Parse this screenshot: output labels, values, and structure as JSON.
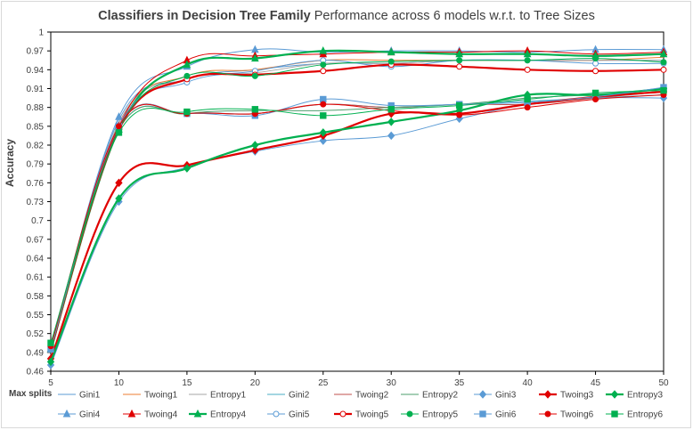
{
  "chart_data": {
    "type": "line",
    "title_bold": "Classifiers in Decision Tree Family",
    "title_rest": "Performance across 6 models w.r.t. to Tree Sizes",
    "ylabel": "Accuracy",
    "xlabel": "Max splits",
    "x": [
      5,
      10,
      15,
      20,
      25,
      30,
      35,
      40,
      45,
      50
    ],
    "ylim": [
      0.46,
      1.0
    ],
    "yticks": [
      "0.46",
      "0.49",
      "0.52",
      "0.55",
      "0.58",
      "0.61",
      "0.64",
      "0.67",
      "0.7",
      "0.73",
      "0.76",
      "0.79",
      "0.82",
      "0.85",
      "0.88",
      "0.91",
      "0.94",
      "0.97",
      "1"
    ],
    "series": [
      {
        "name": "Gini1",
        "color": "#5b9bd5",
        "marker": "none",
        "width": 1,
        "values": [
          0.495,
          0.86,
          0.925,
          0.94,
          0.95,
          0.95,
          0.955,
          0.955,
          0.955,
          0.955
        ]
      },
      {
        "name": "Twoing1",
        "color": "#ed7d31",
        "marker": "none",
        "width": 1,
        "values": [
          0.495,
          0.855,
          0.93,
          0.94,
          0.955,
          0.955,
          0.955,
          0.955,
          0.955,
          0.96
        ]
      },
      {
        "name": "Entropy1",
        "color": "#a5a5a5",
        "marker": "none",
        "width": 1,
        "values": [
          0.495,
          0.855,
          0.925,
          0.935,
          0.95,
          0.95,
          0.955,
          0.955,
          0.955,
          0.955
        ]
      },
      {
        "name": "Gini2",
        "color": "#4aacc6",
        "marker": "none",
        "width": 1,
        "values": [
          0.49,
          0.845,
          0.87,
          0.87,
          0.885,
          0.88,
          0.885,
          0.89,
          0.895,
          0.9
        ]
      },
      {
        "name": "Twoing2",
        "color": "#c0504d",
        "marker": "none",
        "width": 1,
        "values": [
          0.49,
          0.85,
          0.87,
          0.87,
          0.885,
          0.88,
          0.885,
          0.885,
          0.895,
          0.905
        ]
      },
      {
        "name": "Entropy2",
        "color": "#4e9f6e",
        "marker": "none",
        "width": 1,
        "values": [
          0.49,
          0.845,
          0.87,
          0.875,
          0.875,
          0.88,
          0.885,
          0.895,
          0.9,
          0.905
        ]
      },
      {
        "name": "Gini3",
        "color": "#5b9bd5",
        "marker": "diamond",
        "width": 1,
        "values": [
          0.47,
          0.73,
          0.785,
          0.81,
          0.827,
          0.835,
          0.862,
          0.885,
          0.895,
          0.895
        ]
      },
      {
        "name": "Twoing3",
        "color": "#e00000",
        "marker": "diamond",
        "width": 2.2,
        "values": [
          0.48,
          0.76,
          0.788,
          0.812,
          0.835,
          0.87,
          0.87,
          0.885,
          0.897,
          0.905
        ]
      },
      {
        "name": "Entropy3",
        "color": "#00b050",
        "marker": "diamond",
        "width": 2.2,
        "values": [
          0.475,
          0.735,
          0.783,
          0.82,
          0.84,
          0.857,
          0.875,
          0.9,
          0.9,
          0.91
        ]
      },
      {
        "name": "Gini4",
        "color": "#5b9bd5",
        "marker": "triangle",
        "width": 1,
        "values": [
          0.495,
          0.865,
          0.945,
          0.972,
          0.968,
          0.97,
          0.97,
          0.968,
          0.972,
          0.972
        ]
      },
      {
        "name": "Twoing4",
        "color": "#e00000",
        "marker": "triangle",
        "width": 1,
        "values": [
          0.495,
          0.85,
          0.955,
          0.962,
          0.965,
          0.968,
          0.968,
          0.97,
          0.965,
          0.968
        ]
      },
      {
        "name": "Entropy4",
        "color": "#00b050",
        "marker": "triangle",
        "width": 2.2,
        "values": [
          0.495,
          0.845,
          0.948,
          0.958,
          0.97,
          0.968,
          0.965,
          0.965,
          0.962,
          0.965
        ]
      },
      {
        "name": "Gini5",
        "color": "#5b9bd5",
        "marker": "circle-open",
        "width": 1,
        "values": [
          0.495,
          0.85,
          0.92,
          0.938,
          0.955,
          0.945,
          0.955,
          0.955,
          0.95,
          0.95
        ]
      },
      {
        "name": "Twoing5",
        "color": "#e00000",
        "marker": "circle-open",
        "width": 2.2,
        "values": [
          0.495,
          0.845,
          0.925,
          0.932,
          0.938,
          0.948,
          0.945,
          0.94,
          0.938,
          0.94
        ]
      },
      {
        "name": "Entropy5",
        "color": "#00b050",
        "marker": "circle",
        "width": 1,
        "values": [
          0.495,
          0.845,
          0.93,
          0.93,
          0.948,
          0.953,
          0.955,
          0.955,
          0.958,
          0.952
        ]
      },
      {
        "name": "Gini6",
        "color": "#5b9bd5",
        "marker": "square",
        "width": 1,
        "values": [
          0.495,
          0.85,
          0.87,
          0.867,
          0.893,
          0.883,
          0.885,
          0.888,
          0.897,
          0.912
        ]
      },
      {
        "name": "Twoing6",
        "color": "#e00000",
        "marker": "circle",
        "width": 1,
        "values": [
          0.5,
          0.85,
          0.87,
          0.87,
          0.885,
          0.875,
          0.868,
          0.88,
          0.893,
          0.9
        ]
      },
      {
        "name": "Entropy6",
        "color": "#00b050",
        "marker": "square",
        "width": 1,
        "values": [
          0.505,
          0.84,
          0.873,
          0.877,
          0.867,
          0.877,
          0.883,
          0.893,
          0.903,
          0.907
        ]
      }
    ]
  }
}
